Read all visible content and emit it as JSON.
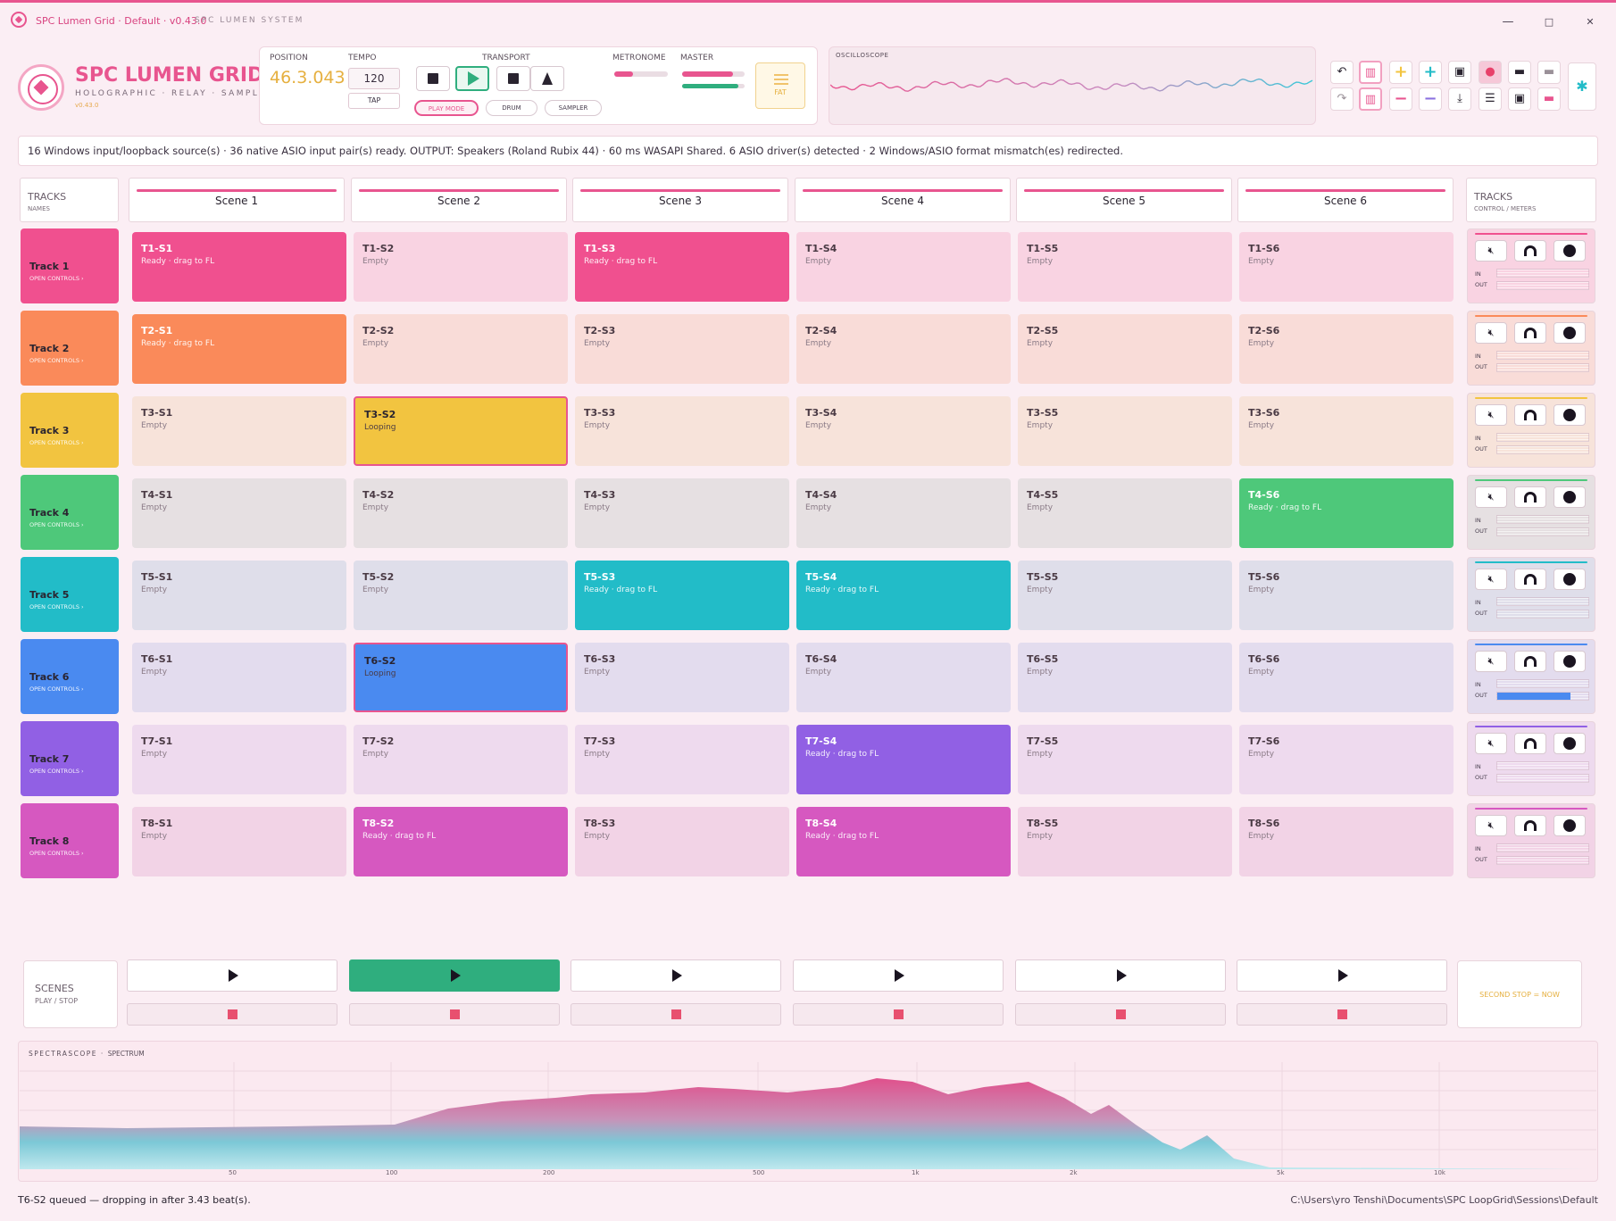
{
  "window": {
    "title": "SPC Lumen Grid · Default · v0.43.0",
    "system_label": "SPC LUMEN SYSTEM",
    "minimize": "—",
    "maximize": "□",
    "close": "✕"
  },
  "brand": {
    "name": "SPC LUMEN GRID",
    "subtitle": "HOLOGRAPHIC · RELAY · SAMPLER",
    "version": "v0.43.0"
  },
  "transport": {
    "position_label": "POSITION",
    "position_value": "46.3.043",
    "tempo_label": "TEMPO",
    "tempo_value": "120",
    "tap_label": "TAP",
    "transport_label": "TRANSPORT",
    "metronome_label": "METRONOME",
    "master_label": "MASTER",
    "modes": [
      "PLAY MODE",
      "DRUM",
      "SAMPLER"
    ],
    "fat_label": "FAT",
    "metronome_level": 0.35,
    "master_level": 0.82,
    "master_level_2": 0.9
  },
  "oscilloscope": {
    "label": "OSCILLOSCOPE"
  },
  "toolbar": {
    "row1": [
      "undo-icon",
      "bars-icon",
      "plus-yellow-icon",
      "plus-cyan-icon",
      "save-icon",
      "record-icon",
      "monitor-icon",
      "monitor-gray-icon"
    ],
    "row2": [
      "redo-icon",
      "bars-icon",
      "minus-pink-icon",
      "minus-purple-icon",
      "download-icon",
      "sliders-icon",
      "save-icon",
      "monitor-pink-icon"
    ],
    "settings": "gear-icon"
  },
  "status_message": "16 Windows input/loopback source(s) · 36 native ASIO input pair(s) ready. OUTPUT: Speakers (Roland Rubix 44) · 60 ms WASAPI Shared. 6 ASIO driver(s) detected · 2 Windows/ASIO format mismatch(es) redirected.",
  "grid": {
    "tracks_header": {
      "title": "TRACKS",
      "sub": "NAMES"
    },
    "controls_header": {
      "title": "TRACKS",
      "sub": "CONTROL / METERS"
    },
    "scenes": [
      "Scene 1",
      "Scene 2",
      "Scene 3",
      "Scene 4",
      "Scene 5",
      "Scene 6"
    ],
    "tracks": [
      {
        "name": "Track 1",
        "open": "OPEN CONTROLS ›",
        "color": "#f0508f",
        "light": "#f9d3e2",
        "clips": [
          {
            "name": "T1-S1",
            "status": "Ready · drag to FL",
            "state": "filled"
          },
          {
            "name": "T1-S2",
            "status": "Empty",
            "state": "empty"
          },
          {
            "name": "T1-S3",
            "status": "Ready · drag to FL",
            "state": "filled"
          },
          {
            "name": "T1-S4",
            "status": "Empty",
            "state": "empty"
          },
          {
            "name": "T1-S5",
            "status": "Empty",
            "state": "empty"
          },
          {
            "name": "T1-S6",
            "status": "Empty",
            "state": "empty"
          }
        ],
        "in": 0,
        "out": 0
      },
      {
        "name": "Track 2",
        "open": "OPEN CONTROLS ›",
        "color": "#fa8a5a",
        "light": "#f9dcd8",
        "clips": [
          {
            "name": "T2-S1",
            "status": "Ready · drag to FL",
            "state": "filled"
          },
          {
            "name": "T2-S2",
            "status": "Empty",
            "state": "empty"
          },
          {
            "name": "T2-S3",
            "status": "Empty",
            "state": "empty"
          },
          {
            "name": "T2-S4",
            "status": "Empty",
            "state": "empty"
          },
          {
            "name": "T2-S5",
            "status": "Empty",
            "state": "empty"
          },
          {
            "name": "T2-S6",
            "status": "Empty",
            "state": "empty"
          }
        ],
        "in": 0,
        "out": 0
      },
      {
        "name": "Track 3",
        "open": "OPEN CONTROLS ›",
        "color": "#f2c440",
        "light": "#f7e3da",
        "clips": [
          {
            "name": "T3-S1",
            "status": "Empty",
            "state": "empty"
          },
          {
            "name": "T3-S2",
            "status": "Looping",
            "state": "looping"
          },
          {
            "name": "T3-S3",
            "status": "Empty",
            "state": "empty"
          },
          {
            "name": "T3-S4",
            "status": "Empty",
            "state": "empty"
          },
          {
            "name": "T3-S5",
            "status": "Empty",
            "state": "empty"
          },
          {
            "name": "T3-S6",
            "status": "Empty",
            "state": "empty"
          }
        ],
        "in": 0,
        "out": 0
      },
      {
        "name": "Track 4",
        "open": "OPEN CONTROLS ›",
        "color": "#4ec87a",
        "light": "#e6e0e2",
        "clips": [
          {
            "name": "T4-S1",
            "status": "Empty",
            "state": "empty"
          },
          {
            "name": "T4-S2",
            "status": "Empty",
            "state": "empty"
          },
          {
            "name": "T4-S3",
            "status": "Empty",
            "state": "empty"
          },
          {
            "name": "T4-S4",
            "status": "Empty",
            "state": "empty"
          },
          {
            "name": "T4-S5",
            "status": "Empty",
            "state": "empty"
          },
          {
            "name": "T4-S6",
            "status": "Ready · drag to FL",
            "state": "filled"
          }
        ],
        "in": 0,
        "out": 0
      },
      {
        "name": "Track 5",
        "open": "OPEN CONTROLS ›",
        "color": "#22bcc8",
        "light": "#dfdeea",
        "clips": [
          {
            "name": "T5-S1",
            "status": "Empty",
            "state": "empty"
          },
          {
            "name": "T5-S2",
            "status": "Empty",
            "state": "empty"
          },
          {
            "name": "T5-S3",
            "status": "Ready · drag to FL",
            "state": "filled"
          },
          {
            "name": "T5-S4",
            "status": "Ready · drag to FL",
            "state": "filled"
          },
          {
            "name": "T5-S5",
            "status": "Empty",
            "state": "empty"
          },
          {
            "name": "T5-S6",
            "status": "Empty",
            "state": "empty"
          }
        ],
        "in": 0,
        "out": 0
      },
      {
        "name": "Track 6",
        "open": "OPEN CONTROLS ›",
        "color": "#4a8af0",
        "light": "#e3dcee",
        "clips": [
          {
            "name": "T6-S1",
            "status": "Empty",
            "state": "empty"
          },
          {
            "name": "T6-S2",
            "status": "Looping",
            "state": "looping"
          },
          {
            "name": "T6-S3",
            "status": "Empty",
            "state": "empty"
          },
          {
            "name": "T6-S4",
            "status": "Empty",
            "state": "empty"
          },
          {
            "name": "T6-S5",
            "status": "Empty",
            "state": "empty"
          },
          {
            "name": "T6-S6",
            "status": "Empty",
            "state": "empty"
          }
        ],
        "in": 0,
        "out": 0.8
      },
      {
        "name": "Track 7",
        "open": "OPEN CONTROLS ›",
        "color": "#9160e4",
        "light": "#eedaee",
        "clips": [
          {
            "name": "T7-S1",
            "status": "Empty",
            "state": "empty"
          },
          {
            "name": "T7-S2",
            "status": "Empty",
            "state": "empty"
          },
          {
            "name": "T7-S3",
            "status": "Empty",
            "state": "empty"
          },
          {
            "name": "T7-S4",
            "status": "Ready · drag to FL",
            "state": "filled"
          },
          {
            "name": "T7-S5",
            "status": "Empty",
            "state": "empty"
          },
          {
            "name": "T7-S6",
            "status": "Empty",
            "state": "empty"
          }
        ],
        "in": 0,
        "out": 0
      },
      {
        "name": "Track 8",
        "open": "OPEN CONTROLS ›",
        "color": "#d658c0",
        "light": "#f2d3e6",
        "clips": [
          {
            "name": "T8-S1",
            "status": "Empty",
            "state": "empty"
          },
          {
            "name": "T8-S2",
            "status": "Ready · drag to FL",
            "state": "filled"
          },
          {
            "name": "T8-S3",
            "status": "Empty",
            "state": "empty"
          },
          {
            "name": "T8-S4",
            "status": "Ready · drag to FL",
            "state": "filled"
          },
          {
            "name": "T8-S5",
            "status": "Empty",
            "state": "empty"
          },
          {
            "name": "T8-S6",
            "status": "Empty",
            "state": "empty"
          }
        ],
        "in": 0,
        "out": 0
      }
    ],
    "meter_in_label": "IN",
    "meter_out_label": "OUT"
  },
  "scenes_panel": {
    "title": "SCENES",
    "sub": "PLAY / STOP",
    "active_scene": 2,
    "second_stop": "SECOND STOP = NOW"
  },
  "spectrum": {
    "title": "SPECTRASCOPE",
    "sub": "SPECTRUM",
    "ticks": [
      "50",
      "100",
      "200",
      "500",
      "1k",
      "2k",
      "5k",
      "10k"
    ]
  },
  "footer": {
    "queue_message": "T6-S2 queued — dropping in after 3.43 beat(s).",
    "session_path": "C:\\Users\\yro Tenshi\\Documents\\SPC LoopGrid\\Sessions\\Default"
  }
}
